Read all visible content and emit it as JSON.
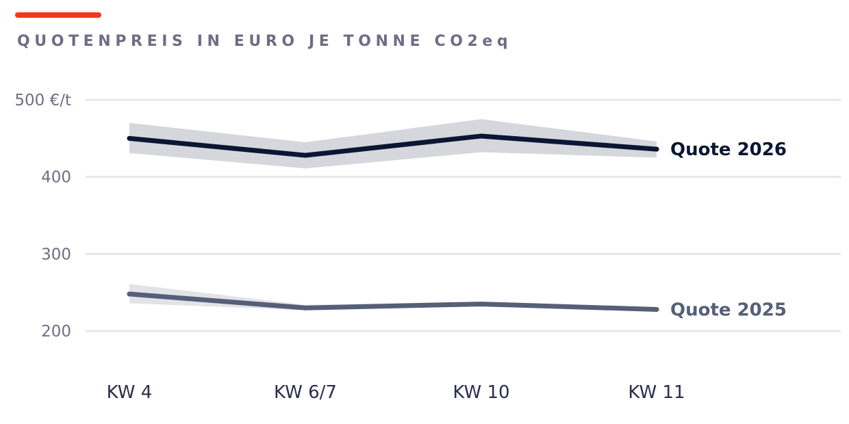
{
  "chart_data": {
    "type": "line",
    "title": "QUOTENPREIS IN EURO JE TONNE CO2eq",
    "categories": [
      "KW 4",
      "KW 6/7",
      "KW 10",
      "KW 11"
    ],
    "y_ticks": [
      {
        "value": 200,
        "label": "200"
      },
      {
        "value": 300,
        "label": "300"
      },
      {
        "value": 400,
        "label": "400"
      },
      {
        "value": 500,
        "label": "500 €/t"
      }
    ],
    "ylim": [
      200,
      500
    ],
    "grid": true,
    "legend": "inline-right",
    "series": [
      {
        "name": "Quote 2026",
        "values": [
          450,
          428,
          453,
          436
        ],
        "range_low": [
          431,
          411,
          432,
          425
        ],
        "range_high": [
          470,
          445,
          475,
          446
        ],
        "color": "#0a1633",
        "band_color": "#d6d7dd"
      },
      {
        "name": "Quote 2025",
        "values": [
          248,
          230,
          235,
          228
        ],
        "range_low": [
          236,
          227,
          232,
          227
        ],
        "range_high": [
          261,
          234,
          238,
          229
        ],
        "color": "#565f78",
        "band_color": "#e2e3e8"
      }
    ]
  },
  "colors": {
    "accent": "#f2391b",
    "title": "#6f6d84",
    "grid": "#e6e5ee",
    "tick_label": "#6f6d84",
    "x_label": "#2c2b4d"
  }
}
